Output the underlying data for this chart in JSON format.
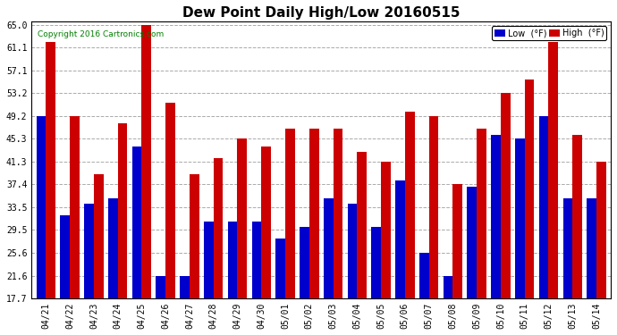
{
  "title": "Dew Point Daily High/Low 20160515",
  "copyright": "Copyright 2016 Cartronics.com",
  "categories": [
    "04/21",
    "04/22",
    "04/23",
    "04/24",
    "04/25",
    "04/26",
    "04/27",
    "04/28",
    "04/29",
    "04/30",
    "05/01",
    "05/02",
    "05/03",
    "05/04",
    "05/05",
    "05/06",
    "05/07",
    "05/08",
    "05/09",
    "05/10",
    "05/11",
    "05/12",
    "05/13",
    "05/14"
  ],
  "low_values": [
    49.2,
    32.0,
    34.0,
    35.0,
    44.0,
    21.6,
    21.6,
    31.0,
    31.0,
    31.0,
    28.0,
    30.0,
    35.0,
    34.0,
    30.0,
    38.0,
    25.6,
    21.6,
    37.0,
    46.0,
    45.3,
    49.2,
    35.0,
    35.0
  ],
  "high_values": [
    62.0,
    49.2,
    39.2,
    48.0,
    65.0,
    51.5,
    39.2,
    42.0,
    45.3,
    44.0,
    47.0,
    47.0,
    47.0,
    43.0,
    41.3,
    50.0,
    49.2,
    37.4,
    47.0,
    53.2,
    55.5,
    62.0,
    46.0,
    41.3
  ],
  "low_color": "#0000cc",
  "high_color": "#cc0000",
  "bg_color": "#ffffff",
  "plot_bg_color": "#ffffff",
  "grid_color": "#aaaaaa",
  "yticks": [
    17.7,
    21.6,
    25.6,
    29.5,
    33.5,
    37.4,
    41.3,
    45.3,
    49.2,
    53.2,
    57.1,
    61.1,
    65.0
  ],
  "ymin": 17.7,
  "ymax": 65.0,
  "legend_low_label": "Low  (°F)",
  "legend_high_label": "High  (°F)"
}
